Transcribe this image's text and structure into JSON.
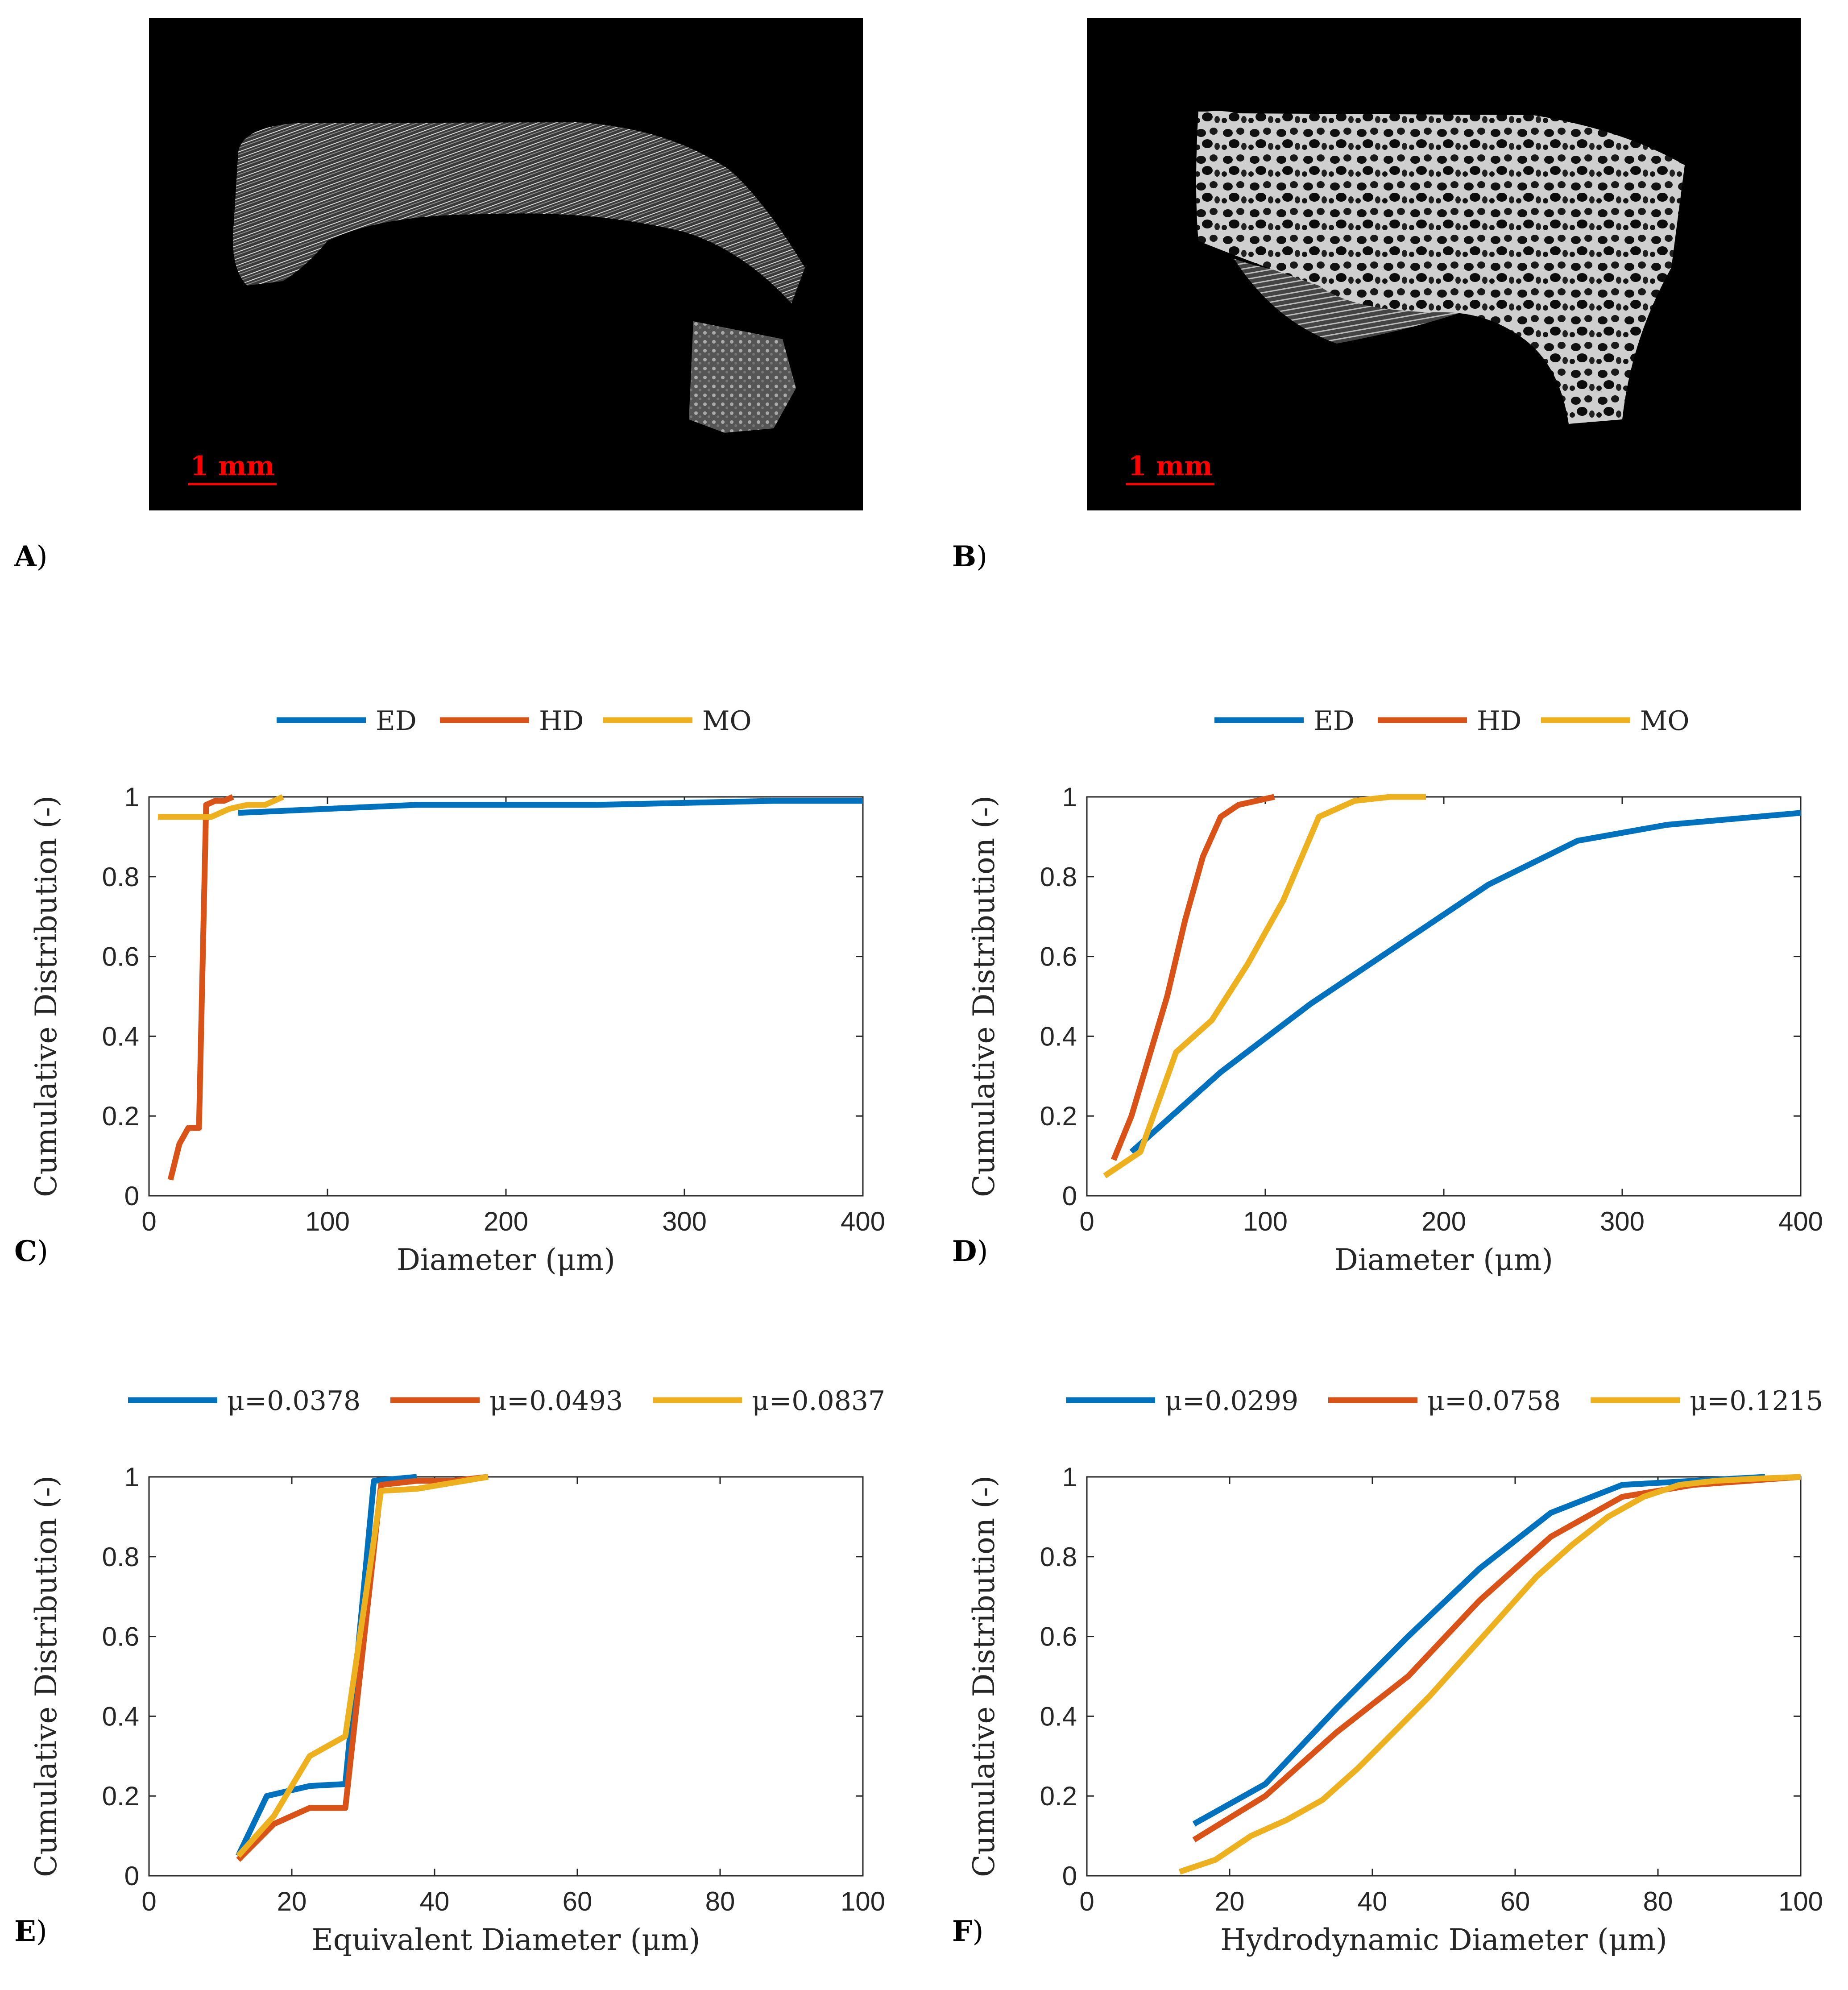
{
  "images": [
    {
      "letter": "A",
      "scalebar": "1 mm"
    },
    {
      "letter": "B",
      "scalebar": "1 mm"
    }
  ],
  "colors": {
    "blue": "#0072BD",
    "orange": "#D95319",
    "yellow": "#EDB120",
    "scalebar": "#ff0000"
  },
  "chart_data": [
    {
      "panel": "C",
      "type": "line",
      "xlabel": "Diameter (μm)",
      "ylabel": "Cumulative Distribution (-)",
      "xlim": [
        0,
        400
      ],
      "ylim": [
        0,
        1
      ],
      "xticks": [
        0,
        100,
        200,
        300,
        400
      ],
      "yticks": [
        0,
        0.2,
        0.4,
        0.6,
        0.8,
        1
      ],
      "xtick_labels": [
        "0",
        "100",
        "200",
        "300",
        "400"
      ],
      "ytick_labels": [
        "0",
        "0.2",
        "0.4",
        "0.6",
        "0.8",
        "1"
      ],
      "legend_position": "top",
      "series": [
        {
          "name": "ED",
          "color": "#0072BD",
          "x": [
            50,
            100,
            150,
            200,
            250,
            300,
            350,
            400
          ],
          "y": [
            0.96,
            0.97,
            0.98,
            0.98,
            0.98,
            0.985,
            0.99,
            0.99
          ]
        },
        {
          "name": "HD",
          "color": "#D95319",
          "x": [
            12,
            17,
            22,
            27,
            28,
            32,
            37,
            42,
            47
          ],
          "y": [
            0.04,
            0.13,
            0.17,
            0.17,
            0.17,
            0.98,
            0.99,
            0.99,
            1.0
          ]
        },
        {
          "name": "MO",
          "color": "#EDB120",
          "x": [
            5,
            15,
            25,
            35,
            45,
            55,
            65,
            75
          ],
          "y": [
            0.95,
            0.95,
            0.95,
            0.95,
            0.97,
            0.98,
            0.98,
            1.0
          ]
        }
      ]
    },
    {
      "panel": "D",
      "type": "line",
      "xlabel": "Diameter (μm)",
      "ylabel": "Cumulative Distribution (-)",
      "xlim": [
        0,
        400
      ],
      "ylim": [
        0,
        1
      ],
      "xticks": [
        0,
        100,
        200,
        300,
        400
      ],
      "yticks": [
        0,
        0.2,
        0.4,
        0.6,
        0.8,
        1
      ],
      "xtick_labels": [
        "0",
        "100",
        "200",
        "300",
        "400"
      ],
      "ytick_labels": [
        "0",
        "0.2",
        "0.4",
        "0.6",
        "0.8",
        "1"
      ],
      "legend_position": "top",
      "series": [
        {
          "name": "ED",
          "color": "#0072BD",
          "x": [
            25,
            75,
            125,
            175,
            225,
            275,
            325,
            375,
            400
          ],
          "y": [
            0.11,
            0.31,
            0.48,
            0.63,
            0.78,
            0.89,
            0.93,
            0.95,
            0.96
          ]
        },
        {
          "name": "HD",
          "color": "#D95319",
          "x": [
            15,
            25,
            35,
            45,
            55,
            65,
            75,
            85,
            95,
            105
          ],
          "y": [
            0.09,
            0.2,
            0.35,
            0.5,
            0.69,
            0.85,
            0.95,
            0.98,
            0.99,
            1.0
          ]
        },
        {
          "name": "MO",
          "color": "#EDB120",
          "x": [
            10,
            30,
            50,
            70,
            90,
            110,
            130,
            150,
            170,
            190
          ],
          "y": [
            0.05,
            0.11,
            0.36,
            0.44,
            0.58,
            0.74,
            0.95,
            0.99,
            1.0,
            1.0
          ]
        }
      ]
    },
    {
      "panel": "E",
      "type": "line",
      "xlabel": "Equivalent Diameter (μm)",
      "ylabel": "Cumulative Distribution (-)",
      "xlim": [
        0,
        100
      ],
      "ylim": [
        0,
        1
      ],
      "xticks": [
        0,
        20,
        40,
        60,
        80,
        100
      ],
      "yticks": [
        0,
        0.2,
        0.4,
        0.6,
        0.8,
        1
      ],
      "xtick_labels": [
        "0",
        "20",
        "40",
        "60",
        "80",
        "100"
      ],
      "ytick_labels": [
        "0",
        "0.2",
        "0.4",
        "0.6",
        "0.8",
        "1"
      ],
      "legend_position": "top",
      "series": [
        {
          "name": "μ=0.0378",
          "color": "#0072BD",
          "x": [
            12.5,
            16.5,
            22.5,
            27.5,
            31.5,
            37.5
          ],
          "y": [
            0.05,
            0.2,
            0.225,
            0.23,
            0.99,
            1.0
          ]
        },
        {
          "name": "μ=0.0493",
          "color": "#D95319",
          "x": [
            12.5,
            17.5,
            22.5,
            27.5,
            32.5,
            37.5,
            42.5,
            47.5
          ],
          "y": [
            0.04,
            0.13,
            0.17,
            0.17,
            0.98,
            0.99,
            0.99,
            1.0
          ]
        },
        {
          "name": "μ=0.0837",
          "color": "#EDB120",
          "x": [
            12.5,
            17.5,
            22.5,
            27.5,
            32.5,
            37.5,
            42.5,
            47.5
          ],
          "y": [
            0.05,
            0.15,
            0.3,
            0.35,
            0.965,
            0.97,
            0.985,
            1.0
          ]
        }
      ]
    },
    {
      "panel": "F",
      "type": "line",
      "xlabel": "Hydrodynamic Diameter (μm)",
      "ylabel": "Cumulative Distribution (-)",
      "xlim": [
        0,
        100
      ],
      "ylim": [
        0,
        1
      ],
      "xticks": [
        0,
        20,
        40,
        60,
        80,
        100
      ],
      "yticks": [
        0,
        0.2,
        0.4,
        0.6,
        0.8,
        1
      ],
      "xtick_labels": [
        "0",
        "20",
        "40",
        "60",
        "80",
        "100"
      ],
      "ytick_labels": [
        "0",
        "0.2",
        "0.4",
        "0.6",
        "0.8",
        "1"
      ],
      "legend_position": "top",
      "series": [
        {
          "name": "μ=0.0299",
          "color": "#0072BD",
          "x": [
            15,
            25,
            35,
            45,
            55,
            65,
            75,
            85,
            95
          ],
          "y": [
            0.13,
            0.23,
            0.42,
            0.6,
            0.77,
            0.91,
            0.98,
            0.99,
            1.0
          ]
        },
        {
          "name": "μ=0.0758",
          "color": "#D95319",
          "x": [
            15,
            25,
            35,
            45,
            55,
            65,
            75,
            85,
            100
          ],
          "y": [
            0.09,
            0.2,
            0.36,
            0.5,
            0.69,
            0.85,
            0.95,
            0.98,
            1.0
          ]
        },
        {
          "name": "μ=0.1215",
          "color": "#EDB120",
          "x": [
            13,
            18,
            23,
            28,
            33,
            38,
            43,
            48,
            53,
            58,
            63,
            68,
            73,
            78,
            83,
            88,
            93,
            100
          ],
          "y": [
            0.01,
            0.04,
            0.1,
            0.14,
            0.19,
            0.27,
            0.36,
            0.45,
            0.55,
            0.65,
            0.75,
            0.83,
            0.9,
            0.95,
            0.98,
            0.99,
            0.995,
            1.0
          ]
        }
      ]
    }
  ]
}
